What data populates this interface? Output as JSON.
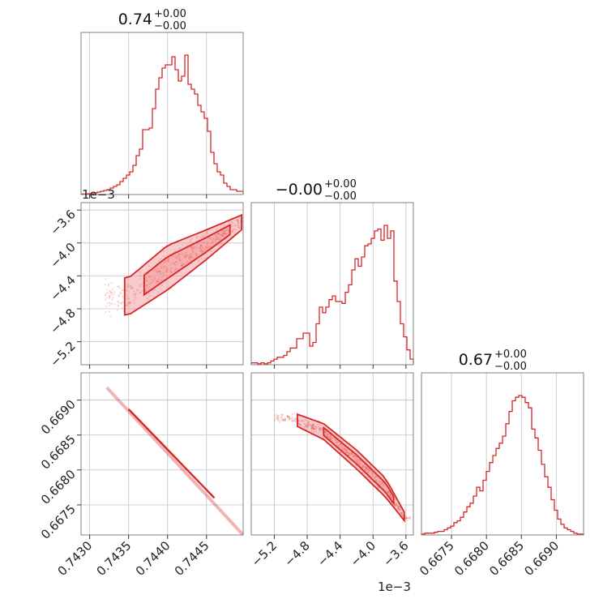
{
  "colors": {
    "main": "#d62728",
    "fill": "#f3a2a3",
    "grid": "#c8c8c8",
    "frame": "#808080"
  },
  "titles": [
    {
      "value": "0.74",
      "plus": "+0.00",
      "minus": "−0.00"
    },
    {
      "value": "−0.00",
      "plus": "+0.00",
      "minus": "−0.00"
    },
    {
      "value": "0.67",
      "plus": "+0.00",
      "minus": "−0.00"
    }
  ],
  "offset_labels": {
    "row1_y": "1e−3",
    "col1_x": "1e−3"
  },
  "chart_data": {
    "type": "corner",
    "parameters": [
      {
        "range": [
          0.74289,
          0.74497
        ],
        "ticks": [
          0.743,
          0.7435,
          0.744,
          0.7445
        ],
        "tick_labels": [
          "0.7430",
          "0.7435",
          "0.7440",
          "0.7445"
        ]
      },
      {
        "range": [
          -5.48,
          -3.51
        ],
        "ticks": [
          -5.2,
          -4.8,
          -4.4,
          -4.0,
          -3.6
        ],
        "tick_labels": [
          "−5.2",
          "−4.8",
          "−4.4",
          "−4.0",
          "−3.6"
        ],
        "scale": "1e-3"
      },
      {
        "range": [
          0.66707,
          0.66939
        ],
        "ticks": [
          0.6675,
          0.668,
          0.6685,
          0.669
        ],
        "tick_labels": [
          "0.6675",
          "0.6680",
          "0.6685",
          "0.6690"
        ]
      }
    ],
    "hist_bins": 50,
    "histograms": [
      [
        0.3,
        0.3,
        0.5,
        0.5,
        1,
        1.5,
        2,
        2.5,
        3,
        4,
        5,
        6,
        8,
        10,
        12,
        14,
        18,
        24,
        28,
        40,
        40,
        41,
        53,
        65,
        72,
        78,
        80,
        80,
        85,
        77,
        70,
        73,
        86,
        68,
        65,
        62,
        55,
        51,
        47,
        39,
        26,
        19,
        14,
        12,
        7,
        5,
        3,
        3,
        2,
        2
      ],
      [
        1,
        1,
        0.5,
        1,
        0.5,
        1,
        2,
        3,
        4,
        4,
        5,
        7,
        9,
        9,
        14,
        14,
        17,
        17,
        10,
        12,
        22,
        31,
        28,
        31,
        35,
        37,
        34,
        34,
        33,
        39,
        43,
        51,
        57,
        53,
        58,
        64,
        65,
        68,
        72,
        73,
        67,
        75,
        68,
        72,
        45,
        34,
        22,
        15,
        8,
        3
      ],
      [
        0.5,
        1,
        1,
        1,
        1.5,
        2,
        2,
        3,
        4,
        5,
        7,
        8,
        10,
        13,
        16,
        18,
        22,
        27,
        25,
        31,
        36,
        41,
        45,
        49,
        52,
        56,
        63,
        70,
        76,
        78,
        79,
        78,
        75,
        72,
        60,
        55,
        48,
        40,
        33,
        27,
        20,
        14,
        9,
        6,
        4,
        3,
        2,
        1,
        0.5,
        0.5
      ]
    ],
    "pair_trends": {
      "1_0": {
        "x": [
          0.7435,
          0.744,
          0.7445,
          0.74495
        ],
        "center": [
          -4.65,
          -4.3,
          -4.02,
          -3.75
        ],
        "width": [
          0.5,
          0.6,
          0.4,
          0.2
        ]
      },
      "2_0": {
        "x": [
          0.74322,
          0.74497
        ],
        "y": [
          0.66918,
          0.66707
        ]
      },
      "2_1": {
        "x": [
          -5.0,
          -4.6,
          -4.2,
          -3.85,
          -3.6
        ],
        "center": [
          0.66875,
          0.66855,
          0.66815,
          0.66775,
          0.6673
        ],
        "width": [
          0.00018,
          0.00025,
          0.0003,
          0.0003,
          0.00012
        ]
      }
    }
  }
}
